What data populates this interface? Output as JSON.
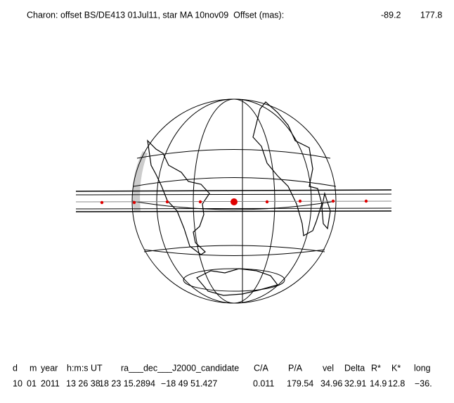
{
  "title": "Charon: offset BS/DE413 01Jul11, star MA 10nov09  Offset (mas):",
  "offset": [
    "-89.2",
    "177.8"
  ],
  "table": {
    "header": [
      "d",
      "m",
      "year",
      "h:m:s UT",
      "ra___dec___J2000_candidate",
      "C/A",
      "P/A",
      "vel",
      "Delta",
      "R*",
      "K*",
      "long"
    ],
    "row": [
      "10",
      "01",
      "2011",
      "13 26 38.",
      "18 23 15.2894",
      "−18 49  51.427",
      "0.011",
      "179.54",
      "34.96",
      "32.91",
      "14.9",
      "12.8",
      "−36."
    ]
  }
}
